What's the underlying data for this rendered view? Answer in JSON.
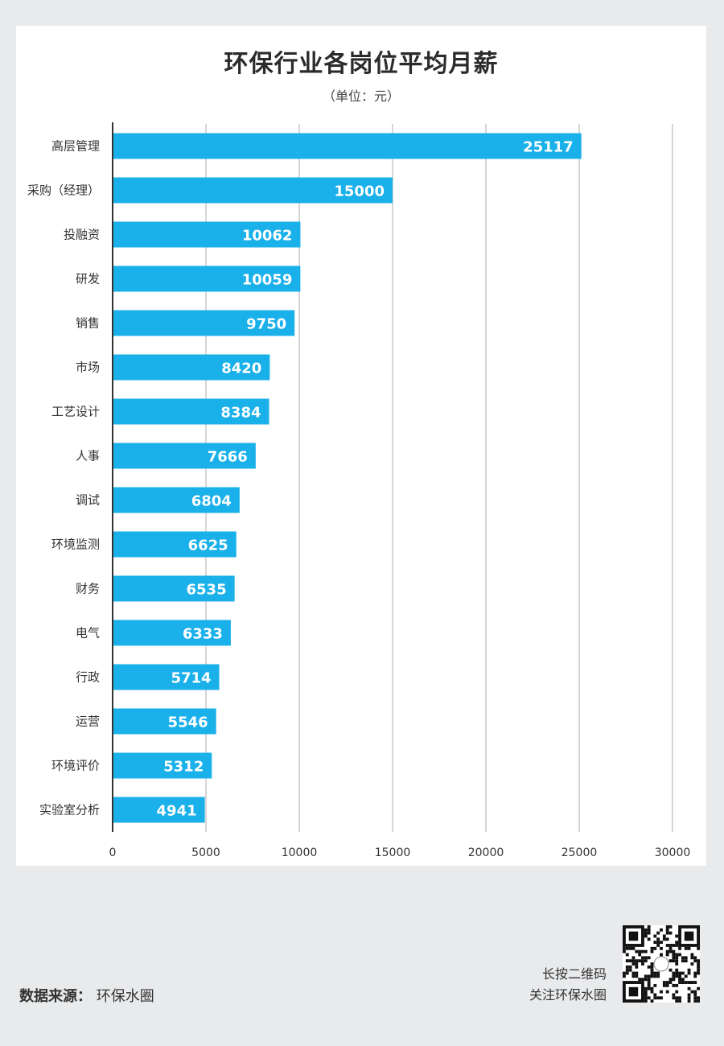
{
  "title": "环保行业各岗位平均月薪",
  "unit_label": "（单位：元）",
  "footer": {
    "source_label": "数据来源：",
    "source_value": "环保水圈",
    "qr_line1": "长按二维码",
    "qr_line2": "关注环保水圈"
  },
  "colors": {
    "bar": "#1ab0ea",
    "grid": "#c9c9c9",
    "axis": "#333333"
  },
  "chart_data": {
    "type": "bar",
    "orientation": "horizontal",
    "categories": [
      "高层管理",
      "采购（经理）",
      "投融资",
      "研发",
      "销售",
      "市场",
      "工艺设计",
      "人事",
      "调试",
      "环境监测",
      "财务",
      "电气",
      "行政",
      "运营",
      "环境评价",
      "实验室分析"
    ],
    "values": [
      25117,
      15000,
      10062,
      10059,
      9750,
      8420,
      8384,
      7666,
      6804,
      6625,
      6535,
      6333,
      5714,
      5546,
      5312,
      4941
    ],
    "xlim": [
      0,
      30000
    ],
    "xticks": [
      0,
      5000,
      10000,
      15000,
      20000,
      25000,
      30000
    ],
    "grid": "vertical",
    "data_labels": "inside-end"
  }
}
